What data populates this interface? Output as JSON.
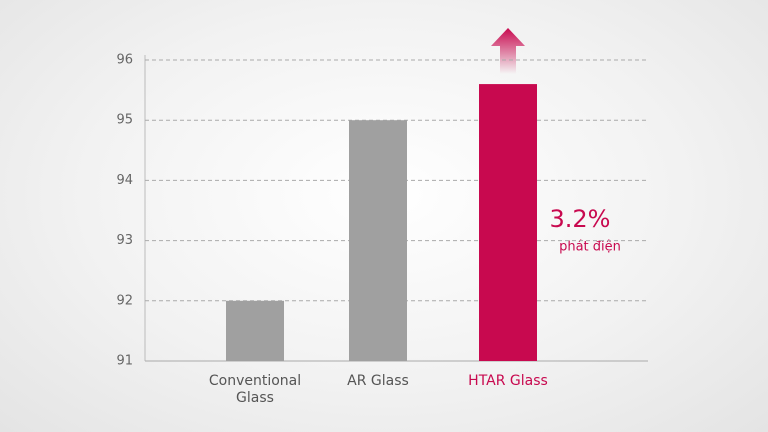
{
  "chart_data": {
    "type": "bar",
    "categories": [
      "Conventional Glass",
      "AR Glass",
      "HTAR Glass"
    ],
    "values": [
      92,
      95,
      95.6
    ],
    "color": "#a0a0a0",
    "colors": [
      "#a0a0a0",
      "#a0a0a0",
      "#c8094f"
    ],
    "ylim": [
      91,
      96
    ],
    "yticks": [
      91,
      92,
      93,
      94,
      95,
      96
    ],
    "grid": true,
    "annotation": {
      "value": "3.2%",
      "label": "phát điện"
    }
  }
}
